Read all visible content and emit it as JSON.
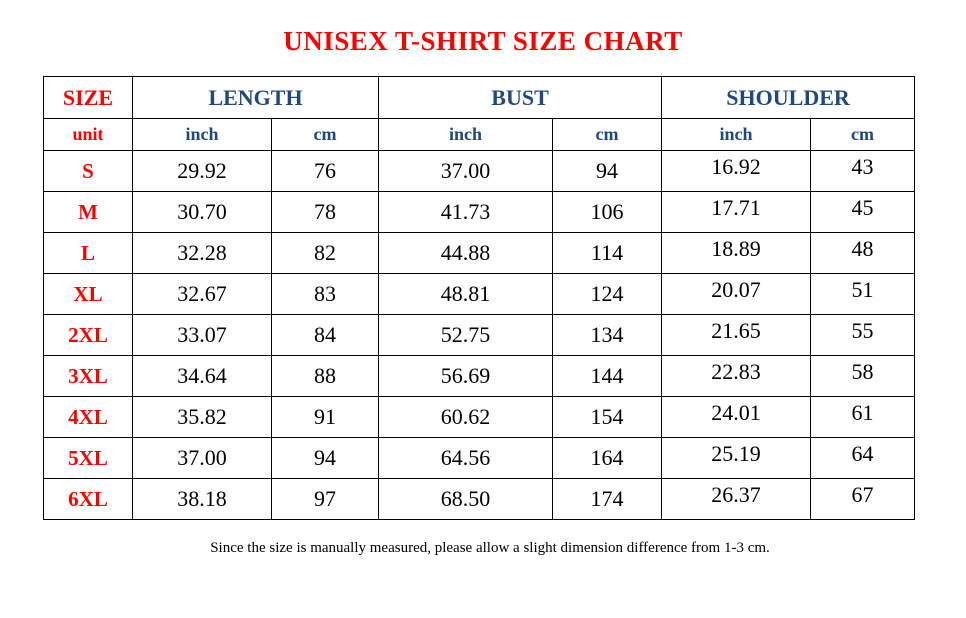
{
  "title": "UNISEX T-SHIRT SIZE CHART",
  "colors": {
    "title": "#ff0000",
    "header": "#1f497d",
    "size": "#ff0000"
  },
  "headers": {
    "size": "SIZE",
    "length": "LENGTH",
    "bust": "BUST",
    "shoulder": "SHOULDER"
  },
  "units": {
    "label": "unit",
    "inch": "inch",
    "cm": "cm"
  },
  "rows": [
    {
      "size": "S",
      "length_in": "29.92",
      "length_cm": "76",
      "bust_in": "37.00",
      "bust_cm": "94",
      "shoulder_in": "16.92",
      "shoulder_cm": "43"
    },
    {
      "size": "M",
      "length_in": "30.70",
      "length_cm": "78",
      "bust_in": "41.73",
      "bust_cm": "106",
      "shoulder_in": "17.71",
      "shoulder_cm": "45"
    },
    {
      "size": "L",
      "length_in": "32.28",
      "length_cm": "82",
      "bust_in": "44.88",
      "bust_cm": "114",
      "shoulder_in": "18.89",
      "shoulder_cm": "48"
    },
    {
      "size": "XL",
      "length_in": "32.67",
      "length_cm": "83",
      "bust_in": "48.81",
      "bust_cm": "124",
      "shoulder_in": "20.07",
      "shoulder_cm": "51"
    },
    {
      "size": "2XL",
      "length_in": "33.07",
      "length_cm": "84",
      "bust_in": "52.75",
      "bust_cm": "134",
      "shoulder_in": "21.65",
      "shoulder_cm": "55"
    },
    {
      "size": "3XL",
      "length_in": "34.64",
      "length_cm": "88",
      "bust_in": "56.69",
      "bust_cm": "144",
      "shoulder_in": "22.83",
      "shoulder_cm": "58"
    },
    {
      "size": "4XL",
      "length_in": "35.82",
      "length_cm": "91",
      "bust_in": "60.62",
      "bust_cm": "154",
      "shoulder_in": "24.01",
      "shoulder_cm": "61"
    },
    {
      "size": "5XL",
      "length_in": "37.00",
      "length_cm": "94",
      "bust_in": "64.56",
      "bust_cm": "164",
      "shoulder_in": "25.19",
      "shoulder_cm": "64"
    },
    {
      "size": "6XL",
      "length_in": "38.18",
      "length_cm": "97",
      "bust_in": "68.50",
      "bust_cm": "174",
      "shoulder_in": "26.37",
      "shoulder_cm": "67"
    }
  ],
  "note": "Since the size is manually measured, please allow a slight dimension difference from 1-3 cm."
}
